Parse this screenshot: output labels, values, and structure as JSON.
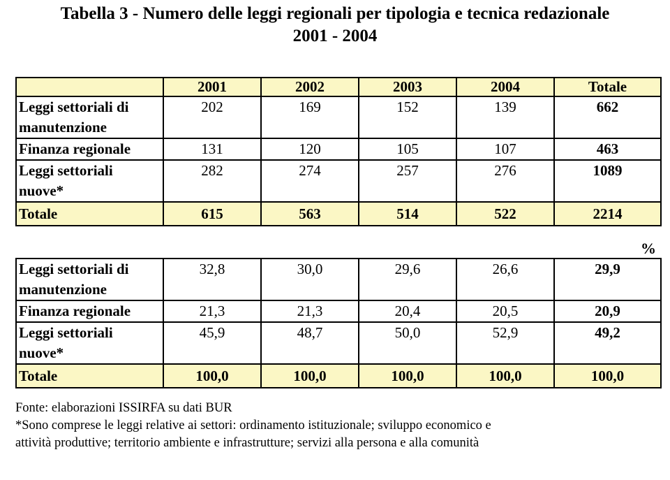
{
  "title": {
    "line1": "Tabella 3 - Numero delle leggi regionali per tipologia e tecnica redazionale",
    "line2": "2001 - 2004"
  },
  "columns": [
    "2001",
    "2002",
    "2003",
    "2004",
    "Totale"
  ],
  "counts_table": {
    "rows": [
      {
        "label": "Leggi settoriali di manutenzione",
        "values": [
          "202",
          "169",
          "152",
          "139"
        ],
        "total": "662"
      },
      {
        "label": "Finanza regionale",
        "values": [
          "131",
          "120",
          "105",
          "107"
        ],
        "total": "463"
      },
      {
        "label": "Leggi settoriali nuove*",
        "values": [
          "282",
          "274",
          "257",
          "276"
        ],
        "total": "1089"
      }
    ],
    "total_row": {
      "label": "Totale",
      "values": [
        "615",
        "563",
        "514",
        "522"
      ],
      "total": "2214"
    }
  },
  "percent_unit": "%",
  "percent_table": {
    "rows": [
      {
        "label": "Leggi settoriali di manutenzione",
        "values": [
          "32,8",
          "30,0",
          "29,6",
          "26,6"
        ],
        "total": "29,9"
      },
      {
        "label": "Finanza regionale",
        "values": [
          "21,3",
          "21,3",
          "20,4",
          "20,5"
        ],
        "total": "20,9"
      },
      {
        "label": "Leggi settoriali nuove*",
        "values": [
          "45,9",
          "48,7",
          "50,0",
          "52,9"
        ],
        "total": "49,2"
      }
    ],
    "total_row": {
      "label": "Totale",
      "values": [
        "100,0",
        "100,0",
        "100,0",
        "100,0"
      ],
      "total": "100,0"
    }
  },
  "notes": {
    "source": "Fonte: elaborazioni ISSIRFA su dati BUR",
    "footnote_line1": "*Sono comprese le leggi relative ai settori: ordinamento istituzionale; sviluppo economico e",
    "footnote_line2": "attività produttive; territorio ambiente e infrastrutture; servizi alla persona e alla comunità"
  },
  "colors": {
    "header_fill": "#fbf7c5",
    "border": "#000000"
  }
}
